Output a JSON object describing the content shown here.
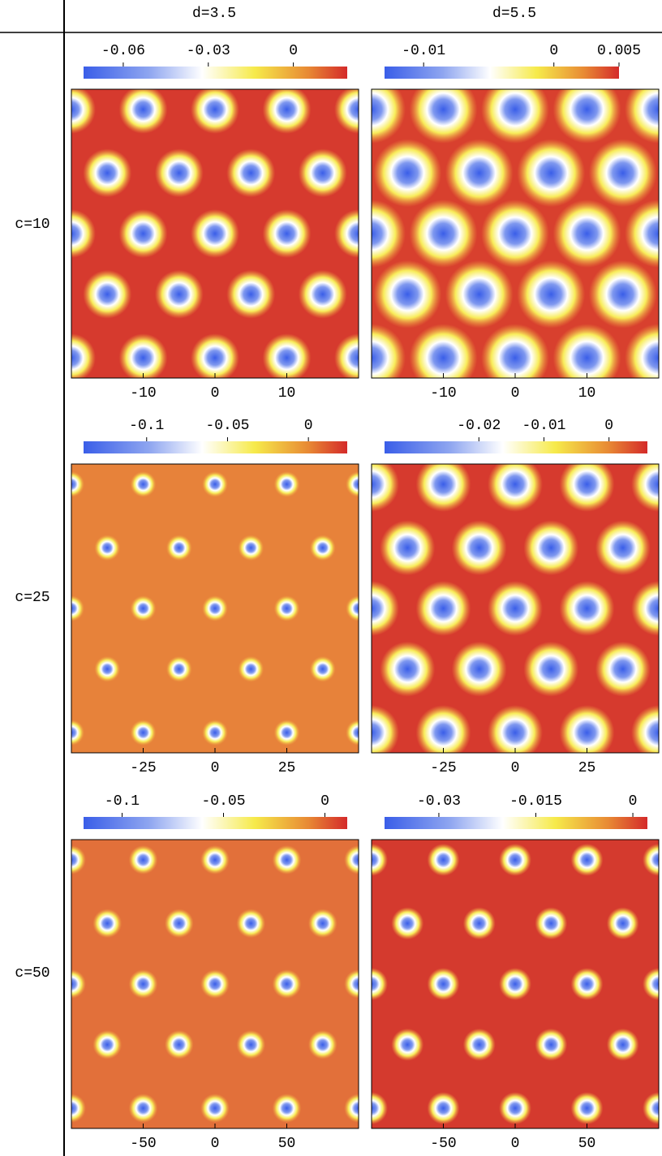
{
  "column_labels": [
    "d=3.5",
    "d=5.5"
  ],
  "row_labels": [
    "c=10",
    "c=25",
    "c=50"
  ],
  "chart_data": [
    {
      "type": "heatmap",
      "clim": [
        -0.074,
        0.019
      ],
      "cticks": [
        -0.06,
        -0.03,
        0
      ],
      "xlim": [
        -20,
        20
      ],
      "xticks": [
        -10,
        0,
        10
      ]
    },
    {
      "type": "heatmap",
      "clim": [
        -0.013,
        0.005
      ],
      "cticks": [
        -0.01,
        0,
        0.005
      ],
      "xlim": [
        -20,
        20
      ],
      "xticks": [
        -10,
        0,
        10
      ]
    },
    {
      "type": "heatmap",
      "clim": [
        -0.139,
        0.024
      ],
      "cticks": [
        -0.1,
        -0.05,
        0
      ],
      "xlim": [
        -50,
        50
      ],
      "xticks": [
        -25,
        0,
        25
      ]
    },
    {
      "type": "heatmap",
      "clim": [
        -0.0345,
        0.0059
      ],
      "cticks": [
        -0.02,
        -0.01,
        0
      ],
      "xlim": [
        -50,
        50
      ],
      "xticks": [
        -25,
        0,
        25
      ]
    },
    {
      "type": "heatmap",
      "clim": [
        -0.119,
        0.011
      ],
      "cticks": [
        -0.1,
        -0.05,
        0
      ],
      "xlim": [
        -100,
        100
      ],
      "xticks": [
        -50,
        0,
        50
      ]
    },
    {
      "type": "heatmap",
      "clim": [
        -0.0384,
        0.00225
      ],
      "cticks": [
        -0.03,
        -0.015,
        0
      ],
      "xlim": [
        -100,
        100
      ],
      "xticks": [
        -50,
        0,
        50
      ]
    }
  ]
}
